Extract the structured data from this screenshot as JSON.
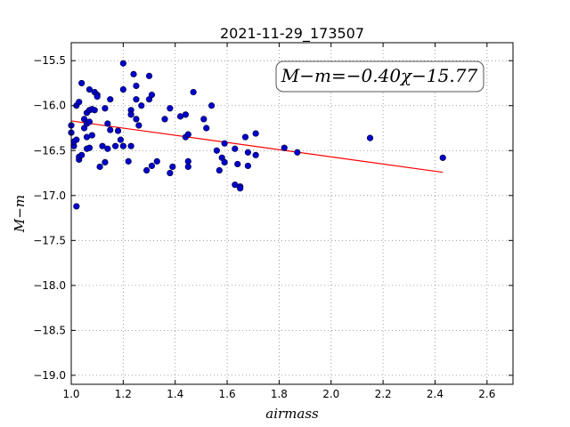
{
  "chart_data": {
    "type": "scatter",
    "title": "2021-11-29_173507",
    "xlabel": "airmass",
    "ylabel": "M−m",
    "xlim": [
      1.0,
      2.7
    ],
    "ylim": [
      -19.1,
      -15.3
    ],
    "grid": true,
    "x_ticks": [
      "1.0",
      "1.2",
      "1.4",
      "1.6",
      "1.8",
      "2.0",
      "2.2",
      "2.4",
      "2.6"
    ],
    "y_ticks": [
      "−15.5",
      "−16.0",
      "−16.5",
      "−17.0",
      "−17.5",
      "−18.0",
      "−18.5",
      "−19.0"
    ],
    "annotation": "M−m=−0.40χ−15.77",
    "fit": {
      "slope": -0.4,
      "intercept": -15.77,
      "x_range": [
        1.0,
        2.43
      ],
      "color": "#ff0000"
    },
    "point_color": "#0000cc",
    "points": [
      [
        1.0,
        -16.22
      ],
      [
        1.0,
        -16.3
      ],
      [
        1.01,
        -16.45
      ],
      [
        1.01,
        -16.4
      ],
      [
        1.02,
        -16.0
      ],
      [
        1.02,
        -16.38
      ],
      [
        1.02,
        -17.12
      ],
      [
        1.03,
        -15.96
      ],
      [
        1.03,
        -16.6
      ],
      [
        1.03,
        -16.57
      ],
      [
        1.04,
        -15.75
      ],
      [
        1.04,
        -16.55
      ],
      [
        1.05,
        -16.15
      ],
      [
        1.05,
        -16.25
      ],
      [
        1.06,
        -16.08
      ],
      [
        1.06,
        -16.2
      ],
      [
        1.06,
        -16.35
      ],
      [
        1.06,
        -16.48
      ],
      [
        1.07,
        -15.82
      ],
      [
        1.07,
        -16.05
      ],
      [
        1.07,
        -16.18
      ],
      [
        1.07,
        -16.47
      ],
      [
        1.08,
        -16.04
      ],
      [
        1.08,
        -16.33
      ],
      [
        1.09,
        -15.85
      ],
      [
        1.09,
        -16.05
      ],
      [
        1.1,
        -15.88
      ],
      [
        1.1,
        -15.9
      ],
      [
        1.11,
        -16.68
      ],
      [
        1.12,
        -16.45
      ],
      [
        1.13,
        -16.03
      ],
      [
        1.13,
        -16.63
      ],
      [
        1.14,
        -16.2
      ],
      [
        1.14,
        -16.48
      ],
      [
        1.15,
        -15.93
      ],
      [
        1.15,
        -16.27
      ],
      [
        1.17,
        -16.45
      ],
      [
        1.18,
        -16.28
      ],
      [
        1.19,
        -16.38
      ],
      [
        1.2,
        -15.53
      ],
      [
        1.2,
        -15.82
      ],
      [
        1.2,
        -16.45
      ],
      [
        1.22,
        -16.62
      ],
      [
        1.23,
        -16.05
      ],
      [
        1.23,
        -16.1
      ],
      [
        1.23,
        -16.45
      ],
      [
        1.24,
        -15.65
      ],
      [
        1.25,
        -15.78
      ],
      [
        1.25,
        -15.93
      ],
      [
        1.25,
        -16.15
      ],
      [
        1.26,
        -16.22
      ],
      [
        1.27,
        -16.0
      ],
      [
        1.29,
        -16.72
      ],
      [
        1.3,
        -15.67
      ],
      [
        1.3,
        -15.93
      ],
      [
        1.31,
        -15.88
      ],
      [
        1.31,
        -16.67
      ],
      [
        1.33,
        -16.62
      ],
      [
        1.36,
        -16.15
      ],
      [
        1.38,
        -16.03
      ],
      [
        1.38,
        -16.75
      ],
      [
        1.39,
        -16.68
      ],
      [
        1.42,
        -16.12
      ],
      [
        1.44,
        -16.1
      ],
      [
        1.44,
        -16.35
      ],
      [
        1.45,
        -16.32
      ],
      [
        1.45,
        -16.62
      ],
      [
        1.45,
        -16.68
      ],
      [
        1.47,
        -15.85
      ],
      [
        1.51,
        -16.15
      ],
      [
        1.52,
        -16.25
      ],
      [
        1.54,
        -16.0
      ],
      [
        1.56,
        -16.5
      ],
      [
        1.57,
        -16.72
      ],
      [
        1.58,
        -16.58
      ],
      [
        1.59,
        -16.42
      ],
      [
        1.59,
        -16.63
      ],
      [
        1.63,
        -16.48
      ],
      [
        1.63,
        -16.88
      ],
      [
        1.64,
        -16.65
      ],
      [
        1.65,
        -16.9
      ],
      [
        1.65,
        -16.92
      ],
      [
        1.67,
        -16.35
      ],
      [
        1.68,
        -16.52
      ],
      [
        1.68,
        -16.67
      ],
      [
        1.71,
        -16.55
      ],
      [
        1.71,
        -16.31
      ],
      [
        1.82,
        -16.47
      ],
      [
        1.87,
        -16.52
      ],
      [
        2.15,
        -16.36
      ],
      [
        2.43,
        -16.58
      ]
    ]
  }
}
